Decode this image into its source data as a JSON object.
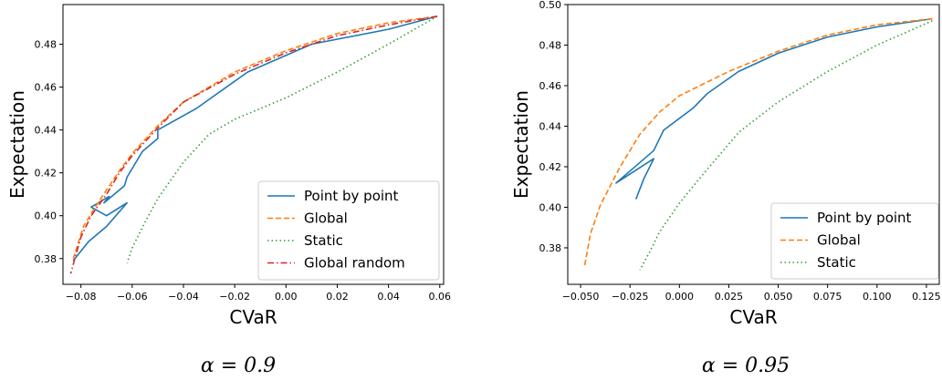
{
  "chart_data": [
    {
      "type": "line",
      "caption": "α = 0.9",
      "xlabel": "CVaR",
      "ylabel": "Expectation",
      "xlim": [
        -0.087,
        0.0615
      ],
      "ylim": [
        0.368,
        0.4985
      ],
      "xticks": [
        -0.08,
        -0.06,
        -0.04,
        -0.02,
        0.0,
        0.02,
        0.04,
        0.06
      ],
      "xtick_labels": [
        "−0.08",
        "−0.06",
        "−0.04",
        "−0.02",
        "0.00",
        "0.02",
        "0.04",
        "0.06"
      ],
      "yticks": [
        0.38,
        0.4,
        0.42,
        0.44,
        0.46,
        0.48
      ],
      "ytick_labels": [
        "0.38",
        "0.40",
        "0.42",
        "0.44",
        "0.46",
        "0.48"
      ],
      "grid": false,
      "legend_position": "lower-right",
      "series": [
        {
          "name": "Point by point",
          "color": "#1f77b4",
          "dash": "solid",
          "x": [
            0.059,
            0.04,
            0.01,
            -0.015,
            -0.035,
            -0.05,
            -0.05,
            -0.054,
            -0.056,
            -0.058,
            -0.06,
            -0.062,
            -0.063,
            -0.071,
            -0.069,
            -0.076,
            -0.07,
            -0.062,
            -0.07,
            -0.077,
            -0.083
          ],
          "y": [
            0.493,
            0.487,
            0.48,
            0.467,
            0.45,
            0.44,
            0.436,
            0.432,
            0.43,
            0.426,
            0.422,
            0.418,
            0.414,
            0.406,
            0.409,
            0.404,
            0.4,
            0.406,
            0.395,
            0.388,
            0.379
          ]
        },
        {
          "name": "Global",
          "color": "#ff7f0e",
          "dash": "dashed",
          "x": [
            0.059,
            0.04,
            0.02,
            0.0,
            -0.02,
            -0.04,
            -0.05,
            -0.06,
            -0.065,
            -0.07,
            -0.075,
            -0.079,
            -0.083
          ],
          "y": [
            0.493,
            0.49,
            0.485,
            0.477,
            0.467,
            0.453,
            0.442,
            0.429,
            0.421,
            0.412,
            0.403,
            0.395,
            0.38
          ]
        },
        {
          "name": "Static",
          "color": "#2ca02c",
          "dash": "dotted",
          "x": [
            0.059,
            0.04,
            0.02,
            0.0,
            -0.02,
            -0.03,
            -0.04,
            -0.05,
            -0.055,
            -0.06,
            -0.062
          ],
          "y": [
            0.493,
            0.48,
            0.467,
            0.455,
            0.445,
            0.438,
            0.425,
            0.408,
            0.397,
            0.385,
            0.378
          ]
        },
        {
          "name": "Global random",
          "color": "#d62728",
          "dash": "dashdot",
          "x": [
            0.059,
            0.04,
            0.02,
            0.0,
            -0.02,
            -0.04,
            -0.05,
            -0.06,
            -0.065,
            -0.07,
            -0.076,
            -0.08,
            -0.084
          ],
          "y": [
            0.493,
            0.489,
            0.484,
            0.476,
            0.466,
            0.453,
            0.441,
            0.428,
            0.42,
            0.41,
            0.4,
            0.39,
            0.373
          ]
        }
      ]
    },
    {
      "type": "line",
      "caption": "α = 0.95",
      "xlabel": "CVaR",
      "ylabel": "Expectation",
      "xlim": [
        -0.0565,
        0.1315
      ],
      "ylim": [
        0.362,
        0.5
      ],
      "xticks": [
        -0.05,
        -0.025,
        0.0,
        0.025,
        0.05,
        0.075,
        0.1,
        0.125
      ],
      "xtick_labels": [
        "−0.050",
        "−0.025",
        "0.000",
        "0.025",
        "0.050",
        "0.075",
        "0.100",
        "0.125"
      ],
      "yticks": [
        0.38,
        0.4,
        0.42,
        0.44,
        0.46,
        0.48,
        0.5
      ],
      "ytick_labels": [
        "0.38",
        "0.40",
        "0.42",
        "0.44",
        "0.46",
        "0.48",
        "0.50"
      ],
      "grid": false,
      "legend_position": "lower-right",
      "series": [
        {
          "name": "Point by point",
          "color": "#1f77b4",
          "dash": "solid",
          "x": [
            0.128,
            0.1,
            0.075,
            0.05,
            0.03,
            0.014,
            0.007,
            -0.008,
            -0.01,
            -0.013,
            -0.032,
            -0.013,
            -0.018,
            -0.022
          ],
          "y": [
            0.493,
            0.489,
            0.484,
            0.476,
            0.467,
            0.456,
            0.449,
            0.438,
            0.434,
            0.428,
            0.412,
            0.424,
            0.414,
            0.404
          ]
        },
        {
          "name": "Global",
          "color": "#ff7f0e",
          "dash": "dashed",
          "x": [
            0.128,
            0.1,
            0.075,
            0.05,
            0.025,
            0.0,
            -0.01,
            -0.02,
            -0.03,
            -0.04,
            -0.045,
            -0.048
          ],
          "y": [
            0.493,
            0.49,
            0.485,
            0.477,
            0.467,
            0.455,
            0.447,
            0.436,
            0.42,
            0.401,
            0.387,
            0.371
          ]
        },
        {
          "name": "Static",
          "color": "#2ca02c",
          "dash": "dotted",
          "x": [
            0.128,
            0.1,
            0.075,
            0.05,
            0.03,
            0.01,
            0.0,
            -0.01,
            -0.015,
            -0.02
          ],
          "y": [
            0.492,
            0.48,
            0.467,
            0.452,
            0.437,
            0.414,
            0.402,
            0.388,
            0.378,
            0.369
          ]
        }
      ]
    }
  ]
}
